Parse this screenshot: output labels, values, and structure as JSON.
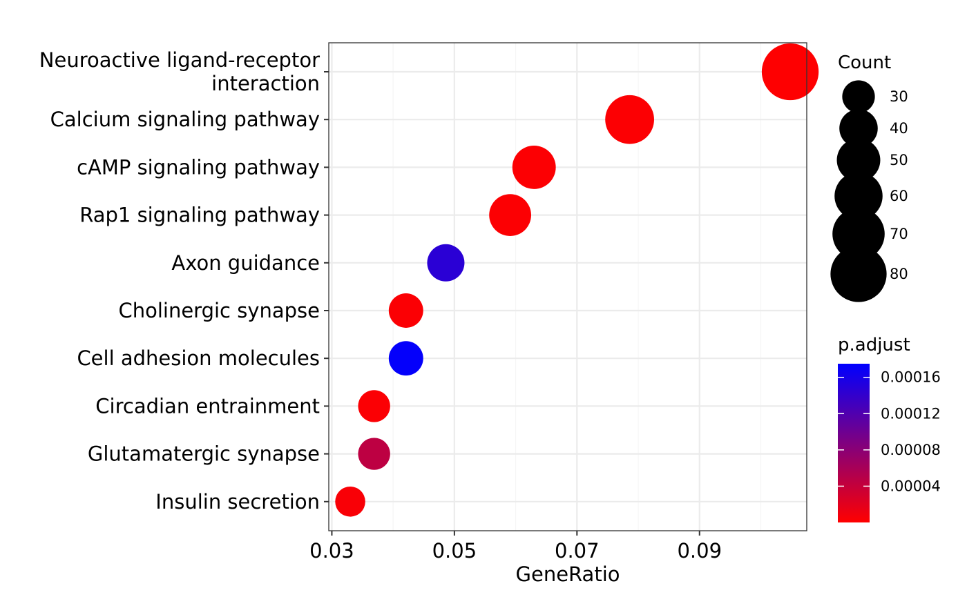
{
  "chart_data": {
    "type": "scatter",
    "xlabel": "GeneRatio",
    "ylabel": "",
    "xlim": [
      0.0295,
      0.1075
    ],
    "x_ticks": [
      0.03,
      0.05,
      0.07,
      0.09
    ],
    "x_tick_labels": [
      "0.03",
      "0.05",
      "0.07",
      "0.09"
    ],
    "grid": true,
    "categories": [
      "Neuroactive ligand-receptor interaction",
      "Calcium signaling pathway",
      "cAMP signaling pathway",
      "Rap1 signaling pathway",
      "Axon guidance",
      "Cholinergic synapse",
      "Cell adhesion molecules",
      "Circadian entrainment",
      "Glutamatergic synapse",
      "Insulin secretion"
    ],
    "category_label_lines": [
      [
        "Neuroactive ligand-receptor",
        "interaction"
      ],
      [
        "Calcium signaling pathway"
      ],
      [
        "cAMP signaling pathway"
      ],
      [
        "Rap1 signaling pathway"
      ],
      [
        "Axon guidance"
      ],
      [
        "Cholinergic synapse"
      ],
      [
        "Cell adhesion molecules"
      ],
      [
        "Circadian entrainment"
      ],
      [
        "Glutamatergic synapse"
      ],
      [
        "Insulin secretion"
      ]
    ],
    "points": [
      {
        "category": "Neuroactive ligand-receptor interaction",
        "gene_ratio": 0.1048,
        "count": 82,
        "p_adjust": 1e-06
      },
      {
        "category": "Calcium signaling pathway",
        "gene_ratio": 0.0786,
        "count": 62,
        "p_adjust": 2e-06
      },
      {
        "category": "cAMP signaling pathway",
        "gene_ratio": 0.063,
        "count": 50,
        "p_adjust": 2e-06
      },
      {
        "category": "Rap1 signaling pathway",
        "gene_ratio": 0.0591,
        "count": 47,
        "p_adjust": 2e-06
      },
      {
        "category": "Axon guidance",
        "gene_ratio": 0.0486,
        "count": 38,
        "p_adjust": 0.000146
      },
      {
        "category": "Cholinergic synapse",
        "gene_ratio": 0.0421,
        "count": 33,
        "p_adjust": 3e-06
      },
      {
        "category": "Cell adhesion molecules",
        "gene_ratio": 0.0421,
        "count": 33,
        "p_adjust": 0.000172
      },
      {
        "category": "Circadian entrainment",
        "gene_ratio": 0.0369,
        "count": 29,
        "p_adjust": 3e-06
      },
      {
        "category": "Glutamatergic synapse",
        "gene_ratio": 0.0369,
        "count": 29,
        "p_adjust": 4.5e-05
      },
      {
        "category": "Insulin secretion",
        "gene_ratio": 0.033,
        "count": 26,
        "p_adjust": 4e-06
      }
    ],
    "size_legend": {
      "title": "Count",
      "values": [
        30,
        40,
        50,
        60,
        70,
        80
      ],
      "labels": [
        "30",
        "40",
        "50",
        "60",
        "70",
        "80"
      ]
    },
    "color_legend": {
      "title": "p.adjust",
      "range": [
        0.0,
        0.000175
      ],
      "ticks": [
        4e-05,
        8e-05,
        0.00012,
        0.00016
      ],
      "tick_labels": [
        "0.00004",
        "0.00008",
        "0.00012",
        "0.00016"
      ],
      "low_color": "#FF0000",
      "high_color": "#0000FF"
    },
    "colors": {
      "panel_border": "#333333",
      "grid_major": "#EBEBEB",
      "grid_minor": "#F5F5F5",
      "axis_tick": "#333333"
    }
  }
}
